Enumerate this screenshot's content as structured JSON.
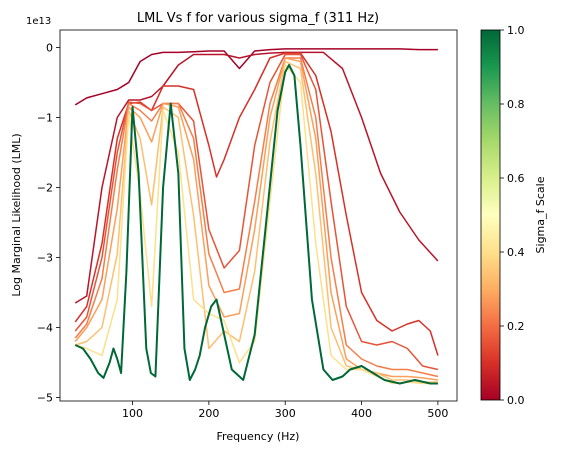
{
  "chart_data": {
    "type": "line",
    "title": "LML Vs f for various sigma_f (311 Hz)",
    "xlabel": "Frequency (Hz)",
    "ylabel": "Log Marginal Likelihood (LML)",
    "offset_text": "1e13",
    "xlim": [
      5,
      525
    ],
    "ylim": [
      -5.05,
      0.25
    ],
    "xticks": [
      100,
      200,
      300,
      400,
      500
    ],
    "xtick_labels": [
      "100",
      "200",
      "300",
      "400",
      "500"
    ],
    "yticks": [
      0,
      -1,
      -2,
      -3,
      -4,
      -5
    ],
    "ytick_labels": [
      "0",
      "−1",
      "−2",
      "−3",
      "−4",
      "−5"
    ],
    "grid": false,
    "colorbar": {
      "label": "Sigma_f Scale",
      "colormap": "RdYlGn",
      "range": [
        0.0,
        1.0
      ],
      "ticks": [
        0.0,
        0.2,
        0.4,
        0.6,
        0.8,
        1.0
      ],
      "tick_labels": [
        "0.0",
        "0.2",
        "0.4",
        "0.6",
        "0.8",
        "1.0"
      ]
    },
    "series": [
      {
        "color": "#a50026",
        "x": [
          25,
          40,
          60,
          80,
          95,
          110,
          125,
          140,
          160,
          180,
          200,
          220,
          240,
          260,
          280,
          300,
          320,
          350,
          375,
          400,
          425,
          450,
          475,
          500
        ],
        "y": [
          -0.82,
          -0.72,
          -0.66,
          -0.6,
          -0.5,
          -0.2,
          -0.1,
          -0.07,
          -0.07,
          -0.06,
          -0.05,
          -0.05,
          -0.3,
          -0.05,
          -0.03,
          -0.02,
          -0.02,
          -0.02,
          -0.02,
          -0.02,
          -0.02,
          -0.02,
          -0.03,
          -0.03
        ]
      },
      {
        "color": "#b9152a",
        "x": [
          25,
          40,
          60,
          80,
          95,
          110,
          125,
          140,
          160,
          180,
          200,
          220,
          240,
          260,
          280,
          300,
          320,
          350,
          375,
          400,
          425,
          450,
          475,
          500
        ],
        "y": [
          -3.65,
          -3.55,
          -2.0,
          -1.0,
          -0.75,
          -0.75,
          -0.7,
          -0.55,
          -0.25,
          -0.1,
          -0.1,
          -0.1,
          -0.15,
          -0.1,
          -0.08,
          -0.07,
          -0.07,
          -0.07,
          -0.3,
          -1.0,
          -1.8,
          -2.35,
          -2.75,
          -3.05
        ]
      },
      {
        "color": "#d73027",
        "x": [
          25,
          40,
          60,
          80,
          95,
          110,
          125,
          140,
          160,
          180,
          200,
          210,
          220,
          240,
          260,
          280,
          300,
          320,
          340,
          360,
          380,
          400,
          420,
          440,
          460,
          475,
          490,
          500
        ],
        "y": [
          -3.92,
          -3.7,
          -2.8,
          -1.3,
          -0.8,
          -0.78,
          -0.9,
          -0.55,
          -0.55,
          -0.6,
          -1.4,
          -1.85,
          -1.6,
          -1.0,
          -0.6,
          -0.15,
          -0.08,
          -0.08,
          -0.4,
          -1.2,
          -2.4,
          -3.5,
          -3.9,
          -4.05,
          -3.95,
          -3.9,
          -4.05,
          -4.4
        ]
      },
      {
        "color": "#e75337",
        "x": [
          25,
          40,
          60,
          80,
          95,
          110,
          125,
          140,
          160,
          180,
          200,
          220,
          240,
          260,
          280,
          300,
          320,
          340,
          360,
          380,
          400,
          420,
          440,
          460,
          480,
          500
        ],
        "y": [
          -4.05,
          -3.85,
          -3.0,
          -1.5,
          -0.78,
          -0.8,
          -0.9,
          -0.8,
          -0.8,
          -1.05,
          -2.6,
          -3.15,
          -2.9,
          -1.4,
          -0.5,
          -0.1,
          -0.1,
          -0.6,
          -2.2,
          -3.7,
          -4.2,
          -4.25,
          -4.2,
          -4.3,
          -4.55,
          -4.6
        ]
      },
      {
        "color": "#f47d4a",
        "x": [
          25,
          40,
          60,
          80,
          95,
          110,
          125,
          140,
          160,
          180,
          200,
          220,
          240,
          260,
          280,
          300,
          320,
          340,
          360,
          380,
          400,
          420,
          440,
          460,
          480,
          500
        ],
        "y": [
          -4.15,
          -3.95,
          -3.3,
          -1.75,
          -0.8,
          -0.9,
          -1.05,
          -0.8,
          -0.8,
          -1.3,
          -2.95,
          -3.5,
          -3.45,
          -2.2,
          -0.8,
          -0.15,
          -0.15,
          -1.0,
          -3.0,
          -4.25,
          -4.45,
          -4.55,
          -4.6,
          -4.6,
          -4.65,
          -4.7
        ]
      },
      {
        "color": "#fb9f5a",
        "x": [
          25,
          40,
          60,
          80,
          95,
          110,
          125,
          140,
          160,
          180,
          200,
          220,
          240,
          260,
          280,
          300,
          320,
          340,
          360,
          380,
          400,
          420,
          440,
          460,
          480,
          500
        ],
        "y": [
          -4.2,
          -4.0,
          -3.6,
          -2.3,
          -0.85,
          -1.0,
          -1.35,
          -0.8,
          -0.85,
          -1.6,
          -3.4,
          -3.85,
          -3.8,
          -2.6,
          -1.0,
          -0.15,
          -0.2,
          -1.3,
          -3.5,
          -4.45,
          -4.6,
          -4.65,
          -4.7,
          -4.7,
          -4.72,
          -4.75
        ]
      },
      {
        "color": "#fdbf6f",
        "x": [
          25,
          40,
          60,
          80,
          95,
          110,
          125,
          140,
          160,
          180,
          200,
          220,
          240,
          260,
          280,
          300,
          320,
          340,
          360,
          380,
          400,
          420,
          440,
          460,
          480,
          500
        ],
        "y": [
          -4.25,
          -4.2,
          -4.0,
          -2.95,
          -0.9,
          -1.3,
          -2.25,
          -0.85,
          -1.0,
          -2.4,
          -4.3,
          -4.05,
          -4.2,
          -3.2,
          -1.35,
          -0.2,
          -0.3,
          -1.8,
          -4.0,
          -4.55,
          -4.6,
          -4.65,
          -4.75,
          -4.75,
          -4.78,
          -4.78
        ]
      },
      {
        "color": "#fee08b",
        "x": [
          25,
          40,
          60,
          80,
          95,
          110,
          125,
          140,
          160,
          180,
          200,
          220,
          240,
          260,
          280,
          300,
          320,
          340,
          360,
          380,
          400,
          420,
          440,
          460,
          480,
          500
        ],
        "y": [
          -4.25,
          -4.3,
          -4.4,
          -3.6,
          -0.95,
          -2.1,
          -3.7,
          -0.9,
          -1.5,
          -3.6,
          -3.8,
          -3.9,
          -4.5,
          -4.2,
          -2.2,
          -0.25,
          -0.5,
          -2.8,
          -4.4,
          -4.6,
          -4.6,
          -4.7,
          -4.8,
          -4.78,
          -4.8,
          -4.8
        ]
      },
      {
        "color": "#006837",
        "x": [
          25,
          35,
          45,
          55,
          62,
          70,
          75,
          80,
          85,
          92,
          100,
          108,
          118,
          124,
          130,
          140,
          150,
          160,
          168,
          175,
          182,
          188,
          195,
          203,
          210,
          218,
          230,
          245,
          260,
          275,
          290,
          300,
          305,
          312,
          320,
          335,
          350,
          362,
          375,
          385,
          400,
          415,
          430,
          450,
          470,
          490,
          500
        ],
        "y": [
          -4.25,
          -4.3,
          -4.45,
          -4.65,
          -4.72,
          -4.5,
          -4.3,
          -4.45,
          -4.65,
          -3.2,
          -0.85,
          -1.8,
          -4.3,
          -4.65,
          -4.7,
          -2.0,
          -0.8,
          -1.8,
          -4.3,
          -4.75,
          -4.6,
          -4.4,
          -4.0,
          -3.7,
          -3.6,
          -4.0,
          -4.6,
          -4.75,
          -4.1,
          -2.5,
          -0.9,
          -0.35,
          -0.25,
          -0.4,
          -1.4,
          -3.6,
          -4.6,
          -4.75,
          -4.7,
          -4.6,
          -4.55,
          -4.65,
          -4.75,
          -4.8,
          -4.75,
          -4.8,
          -4.8
        ]
      }
    ]
  }
}
